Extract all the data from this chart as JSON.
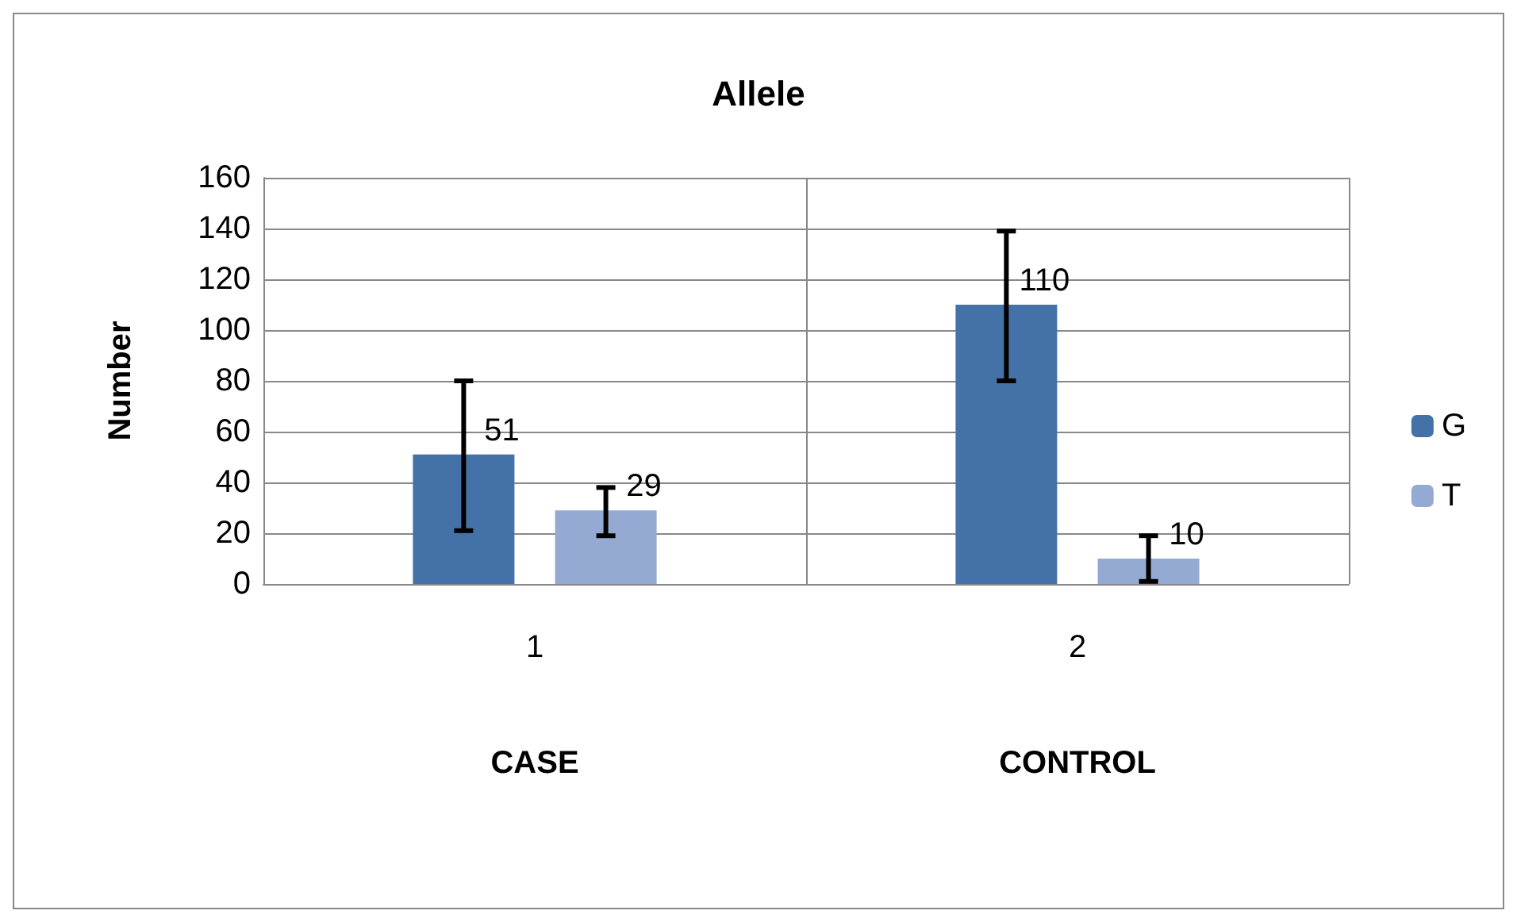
{
  "chart_data": {
    "type": "bar",
    "title": "Allele",
    "ylabel": "Number",
    "categories": [
      "1",
      "2"
    ],
    "annotations": [
      "CASE",
      "CONTROL"
    ],
    "series": [
      {
        "name": "G",
        "color": "#4472a8",
        "values": [
          51,
          110
        ],
        "errors": [
          [
            21,
            80
          ],
          [
            80,
            139
          ]
        ]
      },
      {
        "name": "T",
        "color": "#95aad2",
        "values": [
          29,
          10
        ],
        "errors": [
          [
            19,
            38
          ],
          [
            1,
            19
          ]
        ]
      }
    ],
    "ylim": [
      0,
      160
    ],
    "yticks": [
      0,
      20,
      40,
      60,
      80,
      100,
      120,
      140,
      160
    ],
    "grid": true,
    "legend": "right",
    "data_labels": true
  }
}
